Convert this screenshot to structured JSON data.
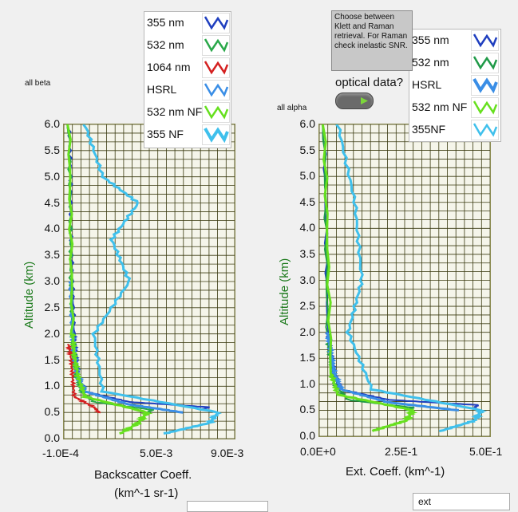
{
  "left_panel": {
    "title_small": "all beta",
    "ylabel": "Altitude  (km)",
    "xlabel_line1": "Backscatter Coeff.",
    "xlabel_line2": "(km^-1 sr-1)",
    "yticks": [
      "6.0",
      "5.5",
      "5.0",
      "4.5",
      "4.0",
      "3.5",
      "3.0",
      "2.5",
      "2.0",
      "1.5",
      "1.0",
      "0.5",
      "0.0"
    ],
    "xticks": [
      "-1.0E-4",
      "5.0E-3",
      "9.0E-3"
    ],
    "legend": [
      "355 nm",
      "532 nm",
      "1064 nm",
      "HSRL",
      "532 nm NF",
      "355 NF"
    ],
    "legend_colors": [
      "#1f3fbf",
      "#2aa84a",
      "#d42020",
      "#3a8ee6",
      "#66e01e",
      "#3fc0ec"
    ]
  },
  "right_panel": {
    "title_small": "all alpha",
    "ylabel": "Altitude  (km)",
    "xlabel": "Ext. Coeff. (km^-1)",
    "yticks": [
      "6.0",
      "5.5",
      "5.0",
      "4.5",
      "4.0",
      "3.5",
      "3.0",
      "2.5",
      "2.0",
      "1.5",
      "1.0",
      "0.5",
      "0.0"
    ],
    "xticks": [
      "0.0E+0",
      "2.5E-1",
      "5.0E-1"
    ],
    "legend": [
      "355 nm",
      "532 nm",
      "HSRL",
      "532 nm NF",
      "355NF"
    ],
    "legend_colors": [
      "#1f3fbf",
      "#1f9a48",
      "#3a8ee6",
      "#66e01e",
      "#3fc0ec"
    ]
  },
  "note": "Choose between Klett and Raman retrieval. For Raman check inelastic SNR.",
  "toggle_label": "optical data?",
  "bottom_stub_label": "ext",
  "chart_data": [
    {
      "type": "line",
      "title": "all beta",
      "xlabel": "Backscatter Coeff. (km^-1 sr-1)",
      "ylabel": "Altitude  (km)",
      "xlim": [
        -0.0001,
        0.0095
      ],
      "ylim": [
        0,
        6
      ],
      "grid": true,
      "legend_position": "top-right",
      "series": [
        {
          "name": "355 nm",
          "x": [
            0.0075,
            0.008,
            0.0035,
            0.001,
            0.0006,
            0.0005,
            0.0004,
            0.0003,
            0.0002,
            0.0002,
            0.0001
          ],
          "y": [
            0.55,
            0.6,
            0.7,
            0.9,
            1.2,
            1.6,
            2.0,
            3.0,
            4.0,
            5.0,
            6.0
          ]
        },
        {
          "name": "532 nm",
          "x": [
            0.0045,
            0.0048,
            0.0015,
            0.0008,
            0.0005,
            0.0004,
            0.0003,
            0.0002,
            0.0002,
            0.0001
          ],
          "y": [
            0.5,
            0.55,
            0.7,
            0.9,
            1.2,
            1.6,
            2.0,
            3.0,
            4.0,
            6.0
          ]
        },
        {
          "name": "1064 nm",
          "x": [
            0.0018,
            0.0015,
            0.0004,
            0.0003,
            0.0002,
            0.0001
          ],
          "y": [
            0.5,
            0.6,
            0.8,
            1.2,
            1.6,
            1.8
          ]
        },
        {
          "name": "HSRL",
          "x": [
            0.0065,
            0.0035,
            0.001,
            0.0006,
            0.0004,
            0.0003,
            0.0002
          ],
          "y": [
            0.5,
            0.65,
            0.9,
            1.2,
            1.6,
            2.0,
            3.0
          ]
        },
        {
          "name": "532 nm NF",
          "x": [
            0.003,
            0.004,
            0.0045,
            0.001,
            0.0006,
            0.0004,
            0.0003,
            0.0001
          ],
          "y": [
            0.1,
            0.3,
            0.5,
            0.8,
            1.2,
            1.6,
            2.0,
            6.0
          ]
        },
        {
          "name": "355 NF",
          "x": [
            0.0055,
            0.008,
            0.0085,
            0.002,
            0.0015,
            0.0035,
            0.0025,
            0.004,
            0.002,
            0.001
          ],
          "y": [
            0.1,
            0.3,
            0.5,
            0.9,
            2.0,
            3.0,
            3.8,
            4.5,
            5.0,
            6.0
          ]
        }
      ]
    },
    {
      "type": "line",
      "title": "all alpha",
      "xlabel": "Ext. Coeff. (km^-1)",
      "ylabel": "Altitude  (km)",
      "xlim": [
        0,
        0.5
      ],
      "ylim": [
        0,
        6
      ],
      "grid": true,
      "legend_position": "top-right",
      "series": [
        {
          "name": "355 nm",
          "x": [
            0.45,
            0.46,
            0.2,
            0.06,
            0.04,
            0.03,
            0.02,
            0.01
          ],
          "y": [
            0.55,
            0.6,
            0.7,
            0.9,
            1.2,
            1.6,
            2.0,
            6.0
          ]
        },
        {
          "name": "532 nm",
          "x": [
            0.25,
            0.27,
            0.08,
            0.04,
            0.03,
            0.02,
            0.01
          ],
          "y": [
            0.5,
            0.55,
            0.7,
            1.0,
            1.4,
            1.8,
            6.0
          ]
        },
        {
          "name": "HSRL",
          "x": [
            0.4,
            0.2,
            0.06,
            0.04,
            0.03,
            0.02
          ],
          "y": [
            0.5,
            0.65,
            0.9,
            1.2,
            1.6,
            2.0
          ]
        },
        {
          "name": "532 nm NF",
          "x": [
            0.15,
            0.25,
            0.27,
            0.05,
            0.03,
            0.01
          ],
          "y": [
            0.1,
            0.3,
            0.5,
            0.8,
            1.2,
            6.0
          ]
        },
        {
          "name": "355NF",
          "x": [
            0.35,
            0.45,
            0.47,
            0.15,
            0.08,
            0.12,
            0.1,
            0.05
          ],
          "y": [
            0.1,
            0.3,
            0.5,
            0.9,
            2.0,
            3.0,
            4.5,
            6.0
          ]
        }
      ]
    }
  ]
}
